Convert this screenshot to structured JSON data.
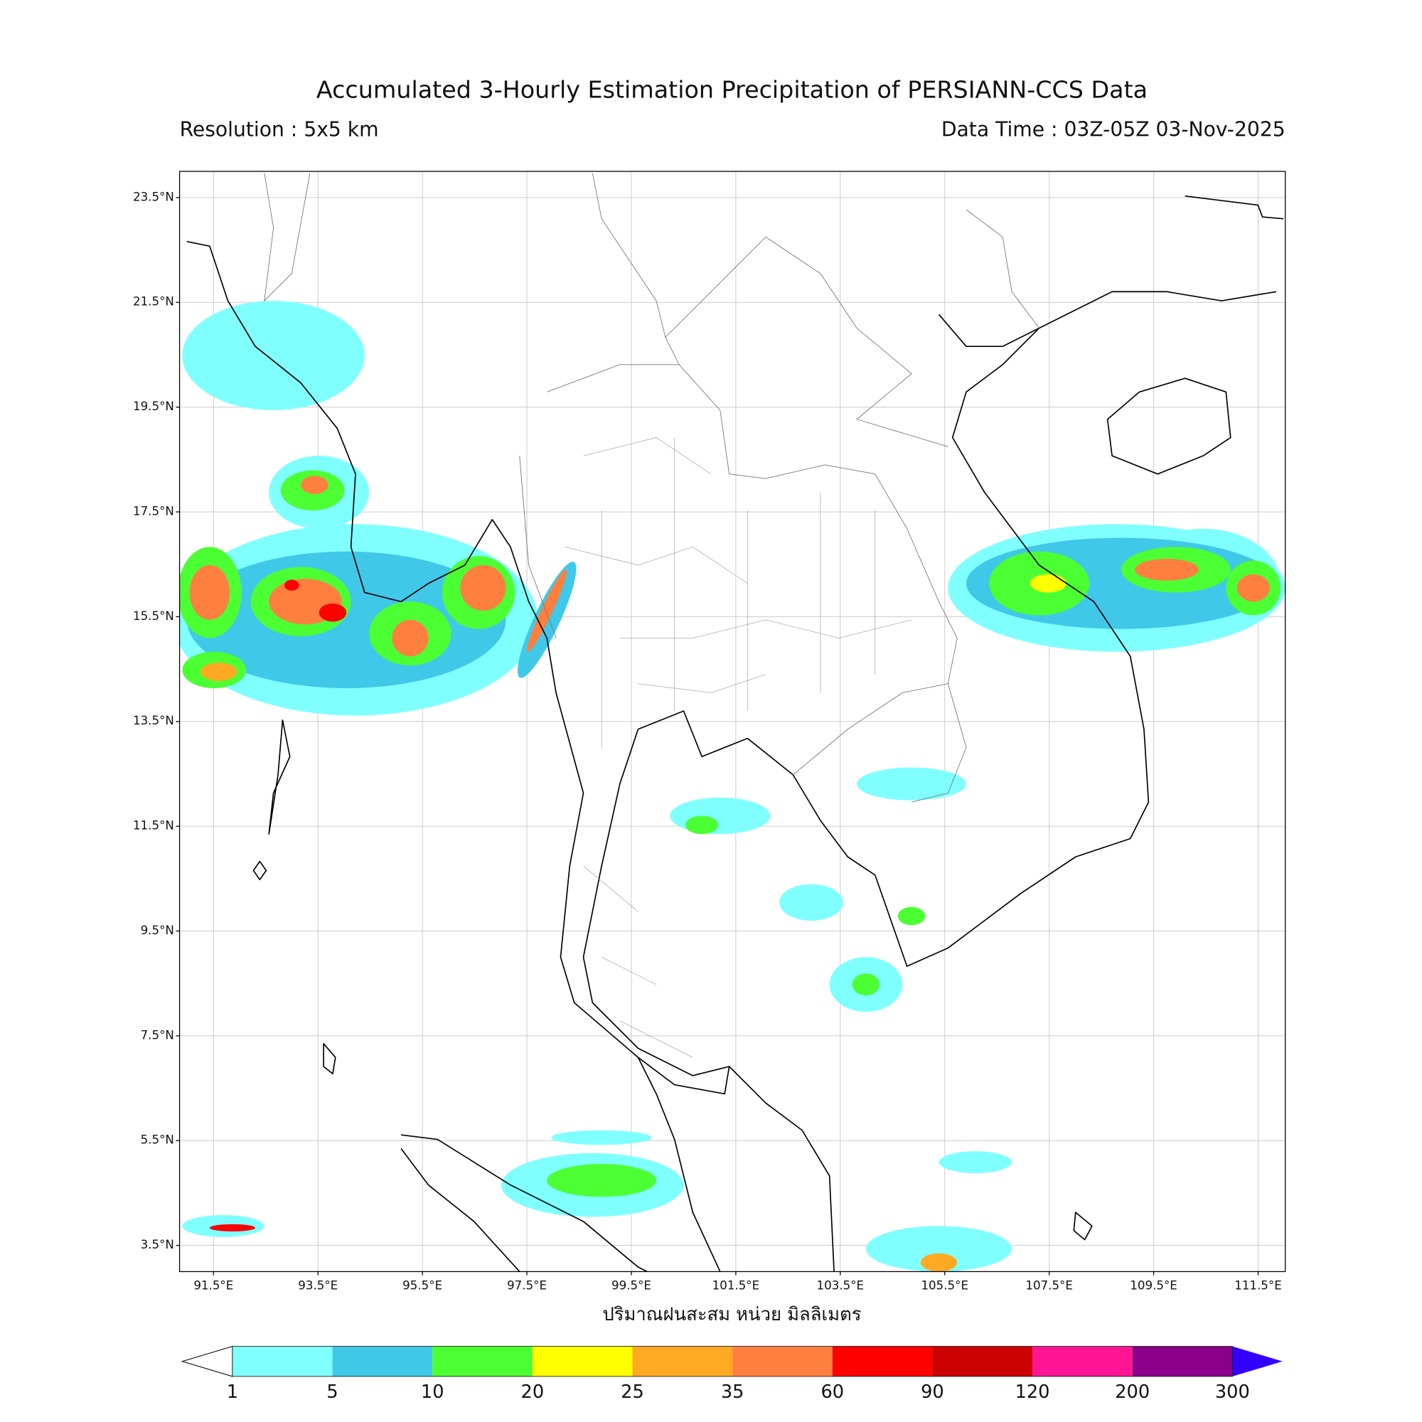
{
  "header": {
    "title": "Accumulated 3-Hourly Estimation Precipitation of PERSIANN-CCS Data",
    "resolution": "Resolution : 5x5 km",
    "data_time": "Data Time : 03Z-05Z 03-Nov-2025"
  },
  "map": {
    "lonlim": [
      90.85,
      112.02
    ],
    "latlim": [
      3.0,
      24.0
    ],
    "grid": true,
    "lonticks": [
      {
        "value": 91.5,
        "label": "91.5°E"
      },
      {
        "value": 93.5,
        "label": "93.5°E"
      },
      {
        "value": 95.5,
        "label": "95.5°E"
      },
      {
        "value": 97.5,
        "label": "97.5°E"
      },
      {
        "value": 99.5,
        "label": "99.5°E"
      },
      {
        "value": 101.5,
        "label": "101.5°E"
      },
      {
        "value": 103.5,
        "label": "103.5°E"
      },
      {
        "value": 105.5,
        "label": "105.5°E"
      },
      {
        "value": 107.5,
        "label": "107.5°E"
      },
      {
        "value": 109.5,
        "label": "109.5°E"
      },
      {
        "value": 111.5,
        "label": "111.5°E"
      }
    ],
    "latticks": [
      {
        "value": 23.5,
        "label": "23.5°N"
      },
      {
        "value": 21.5,
        "label": "21.5°N"
      },
      {
        "value": 19.5,
        "label": "19.5°N"
      },
      {
        "value": 17.5,
        "label": "17.5°N"
      },
      {
        "value": 15.5,
        "label": "15.5°N"
      },
      {
        "value": 13.5,
        "label": "13.5°N"
      },
      {
        "value": 11.5,
        "label": "11.5°N"
      },
      {
        "value": 9.5,
        "label": "9.5°N"
      },
      {
        "value": 7.5,
        "label": "7.5°N"
      },
      {
        "value": 5.5,
        "label": "5.5°N"
      },
      {
        "value": 3.5,
        "label": "3.5°N"
      }
    ],
    "xlabel": "ปริมาณฝนสะสม หน่วย มิลลิเมตร"
  },
  "colorbar": {
    "bounds": [
      1,
      5,
      10,
      20,
      25,
      35,
      60,
      90,
      120,
      200,
      300
    ],
    "colors": [
      "#80ffff",
      "#40c8e8",
      "#4cff33",
      "#ffff00",
      "#ffaa22",
      "#ff7f3f",
      "#ff0000",
      "#cc0000",
      "#ff1493",
      "#8b008b"
    ],
    "under_color": "#ffffff",
    "over_color": "#3300ff"
  }
}
